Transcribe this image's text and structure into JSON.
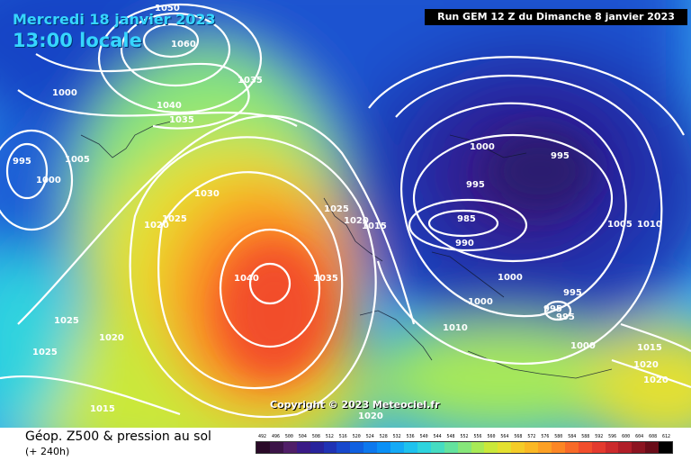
{
  "header": {
    "date": "Mercredi 18 janvier 2023",
    "time": "13:00 locale",
    "run": "Run GEM 12 Z du Dimanche 8 janvier 2023"
  },
  "copyright": "Copyright © 2023 Meteociel.fr",
  "footer": {
    "title": "Géop. Z500 & pression au sol",
    "subtitle": "(+ 240h)"
  },
  "legend": {
    "ticks": [
      "492",
      "496",
      "500",
      "504",
      "508",
      "512",
      "516",
      "520",
      "524",
      "528",
      "532",
      "536",
      "540",
      "544",
      "548",
      "552",
      "556",
      "560",
      "564",
      "568",
      "572",
      "576",
      "580",
      "584",
      "588",
      "592",
      "596",
      "600",
      "604",
      "608",
      "612"
    ],
    "colors": [
      "#2a0a28",
      "#3c1448",
      "#501e68",
      "#3a1a86",
      "#28239c",
      "#1f32b4",
      "#1748cc",
      "#0f60e0",
      "#0c78ee",
      "#0a90f6",
      "#14aaf6",
      "#1ec2ee",
      "#2ed4de",
      "#46dcc2",
      "#64e29e",
      "#86e67a",
      "#a8ea56",
      "#cae83a",
      "#e4e030",
      "#f4cc28",
      "#fab824",
      "#fca024",
      "#fc8624",
      "#f86a28",
      "#f24e2c",
      "#e43a2e",
      "#cc2a2c",
      "#b01e28",
      "#8c1420",
      "#6a0c18",
      "#000000"
    ]
  },
  "pressure_labels": [
    {
      "text": "1050"
    },
    {
      "text": "1060"
    },
    {
      "text": "1000"
    },
    {
      "text": "1035"
    },
    {
      "text": "1040"
    },
    {
      "text": "1035"
    },
    {
      "text": "995"
    },
    {
      "text": "1000"
    },
    {
      "text": "1005"
    },
    {
      "text": "1030"
    },
    {
      "text": "1025"
    },
    {
      "text": "1020"
    },
    {
      "text": "1040"
    },
    {
      "text": "1035"
    },
    {
      "text": "1025"
    },
    {
      "text": "1020"
    },
    {
      "text": "1015"
    },
    {
      "text": "1025"
    },
    {
      "text": "1020"
    },
    {
      "text": "1025"
    },
    {
      "text": "1015"
    },
    {
      "text": "1020"
    },
    {
      "text": "1000"
    },
    {
      "text": "995"
    },
    {
      "text": "995"
    },
    {
      "text": "985"
    },
    {
      "text": "990"
    },
    {
      "text": "1005"
    },
    {
      "text": "1010"
    },
    {
      "text": "1000"
    },
    {
      "text": "1000"
    },
    {
      "text": "995"
    },
    {
      "text": "995"
    },
    {
      "text": "995"
    },
    {
      "text": "1010"
    },
    {
      "text": "1000"
    },
    {
      "text": "1015"
    },
    {
      "text": "1020"
    },
    {
      "text": "1020"
    }
  ],
  "features": [
    "low-pressure-center",
    "low-pressure-center",
    "high-pressure-center",
    "high-pressure-center"
  ]
}
